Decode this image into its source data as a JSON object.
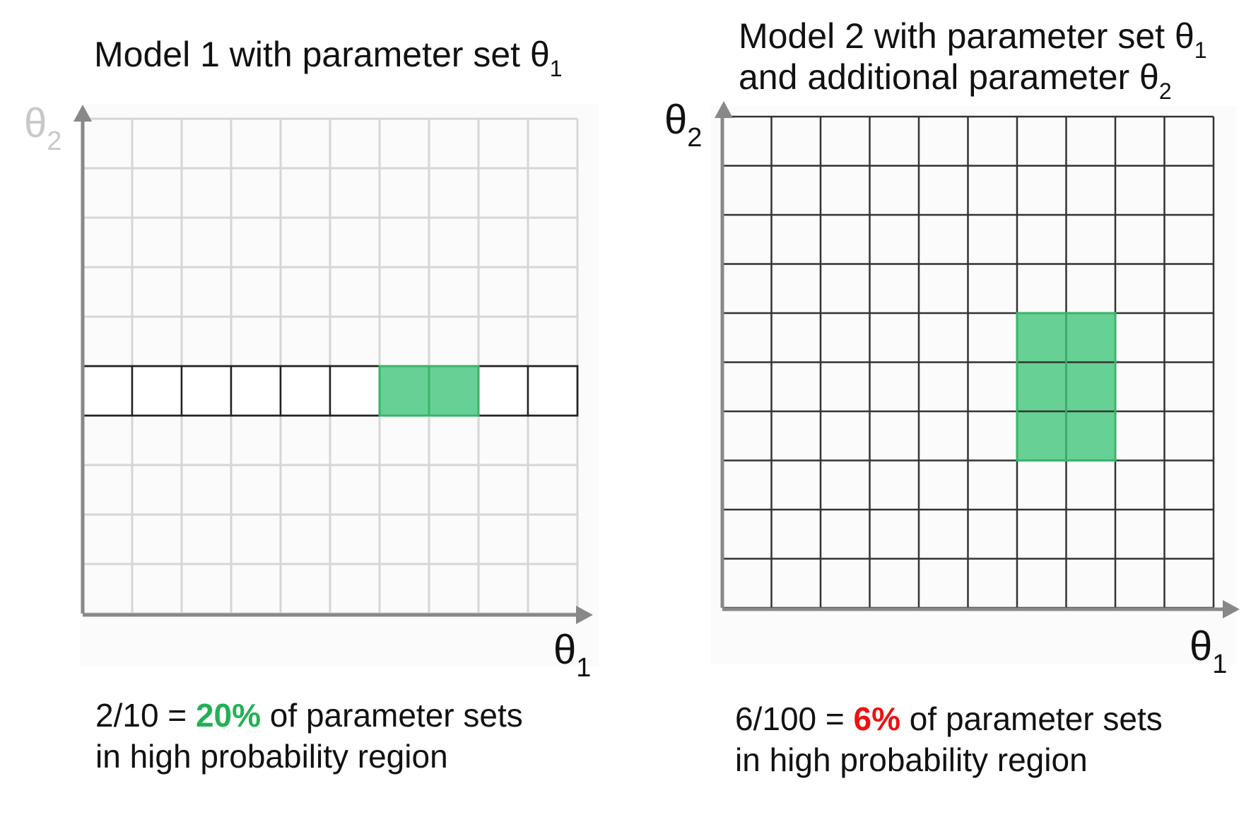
{
  "left_panel": {
    "title_main": "Model 1 with parameter set θ",
    "title_sub": "1",
    "ylabel_main": "θ",
    "ylabel_sub": "2",
    "xlabel_main": "θ",
    "xlabel_sub": "1",
    "caption_prefix": "2/10 = ",
    "caption_highlight": "20%",
    "caption_suffix": " of parameter sets",
    "caption_line2": "in high probability region",
    "grid_cols": 10,
    "grid_rows": 10,
    "active_row": 5,
    "highlighted_cells": [
      [
        5,
        6
      ],
      [
        5,
        7
      ]
    ],
    "highlight_fraction": "2/10",
    "colors": {
      "light_grid": "#d6d6d6",
      "dark_grid": "#222222",
      "highlight_fill": "#67d094",
      "highlight_stroke": "#3bb36a",
      "axis": "#888888",
      "caption_highlight": "#22b155"
    }
  },
  "right_panel": {
    "title_line1_main": "Model 2 with parameter set θ",
    "title_line1_sub": "1",
    "title_line2_main": "and additional parameter θ",
    "title_line2_sub": "2",
    "ylabel_main": "θ",
    "ylabel_sub": "2",
    "xlabel_main": "θ",
    "xlabel_sub": "1",
    "caption_prefix": "6/100 = ",
    "caption_highlight": "6%",
    "caption_suffix": " of parameter sets",
    "caption_line2": "in high probability region",
    "grid_cols": 10,
    "grid_rows": 10,
    "highlighted_cells": [
      [
        4,
        6
      ],
      [
        4,
        7
      ],
      [
        5,
        6
      ],
      [
        5,
        7
      ],
      [
        6,
        6
      ],
      [
        6,
        7
      ]
    ],
    "highlight_fraction": "6/100",
    "colors": {
      "dark_grid": "#333333",
      "highlight_fill": "#67d094",
      "highlight_stroke": "#3bb36a",
      "axis": "#888888",
      "caption_highlight": "#ee1111"
    }
  }
}
